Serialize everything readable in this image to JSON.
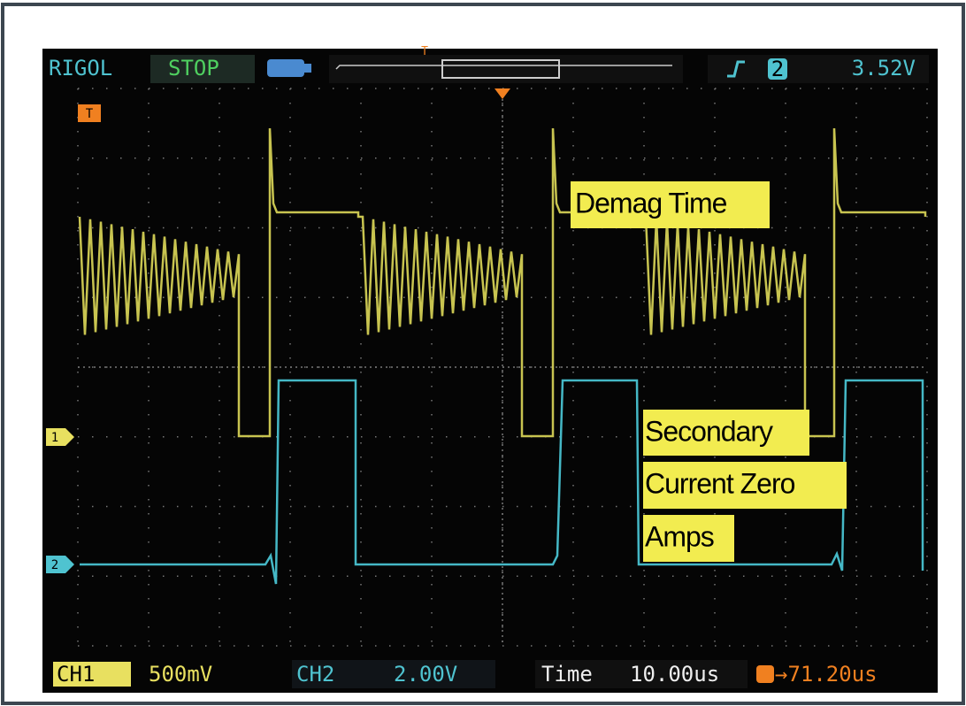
{
  "header": {
    "brand": "RIGOL",
    "status": "STOP",
    "overview_trigger": "T",
    "trigger_channel": "2",
    "trigger_level": "3.52V"
  },
  "screen": {
    "trigger_marker": "T",
    "channel_markers": [
      "1",
      "2"
    ],
    "annotations": [
      "Demag Time",
      "Secondary",
      "Current Zero",
      "Amps"
    ]
  },
  "footer": {
    "ch1_label": "CH1",
    "ch1_scale": "500mV",
    "ch2_label": "CH2",
    "ch2_scale": "2.00V",
    "time_label": "Time",
    "time_scale": "10.00us",
    "trigger_offset": "→71.20us"
  }
}
